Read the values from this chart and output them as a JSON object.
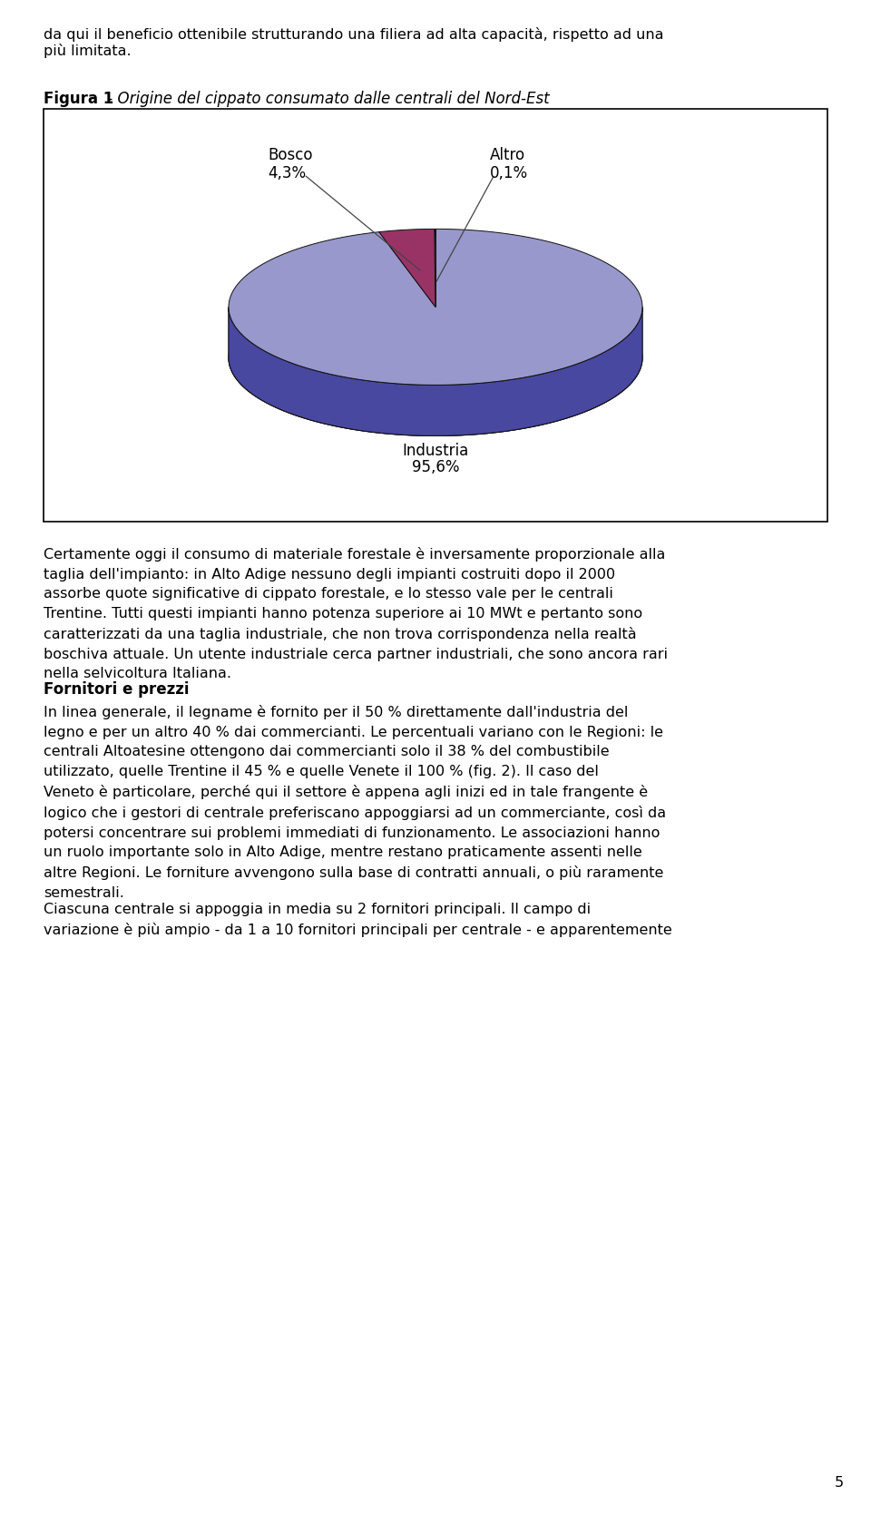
{
  "page_width": 9.6,
  "page_height": 16.7,
  "bg_color": "#ffffff",
  "top_text_line1": "da qui il beneficio ottenibile strutturando una filiera ad alta capacità, rispetto ad una",
  "top_text_line2": "più limitata.",
  "figure_label_bold": "Figura 1",
  "figure_label_italic": " - Origine del cippato consumato dalle centrali del Nord-Est",
  "industria_color_top": "#9898cc",
  "industria_color_side": "#4848a0",
  "bosco_color_top": "#993366",
  "bosco_color_side": "#772255",
  "altro_color_top": "#cc7799",
  "industria_label": "Industria",
  "industria_pct": "95,6%",
  "bosco_label": "Bosco",
  "bosco_pct": "4,3%",
  "altro_label": "Altro",
  "altro_pct": "0,1%",
  "bosco_value": 4.3,
  "altro_value": 0.1,
  "industria_value": 95.6,
  "body_text_1": "Certamente oggi il consumo di materiale forestale è inversamente proporzionale alla\ntaglia dell'impianto: in Alto Adige nessuno degli impianti costruiti dopo il 2000\nassorbe quote significative di cippato forestale, e lo stesso vale per le centrali\nTrentine. Tutti questi impianti hanno potenza superiore ai 10 MWt e pertanto sono\ncaratterizzati da una taglia industriale, che non trova corrispondenza nella realtà\nboschiva attuale. Un utente industriale cerca partner industriali, che sono ancora rari\nnella selvicoltura Italiana.",
  "body_heading": "Fornitori e prezzi",
  "body_text_2": "In linea generale, il legname è fornito per il 50 % direttamente dall'industria del\nlegno e per un altro 40 % dai commercianti. Le percentuali variano con le Regioni: le\ncentrali Altoatesine ottengono dai commercianti solo il 38 % del combustibile\nutilizzato, quelle Trentine il 45 % e quelle Venete il 100 % (fig. 2). Il caso del\nVeneto è particolare, perché qui il settore è appena agli inizi ed in tale frangente è\nlogico che i gestori di centrale preferiscano appoggiarsi ad un commerciante, così da\npotersi concentrare sui problemi immediati di funzionamento. Le associazioni hanno\nun ruolo importante solo in Alto Adige, mentre restano praticamente assenti nelle\naltre Regioni. Le forniture avvengono sulla base di contratti annuali, o più raramente\nsemestrali.",
  "body_text_3": "Ciascuna centrale si appoggia in media su 2 fornitori principali. Il campo di\nvariazione è più ampio - da 1 a 10 fornitori principali per centrale - e apparentemente",
  "page_number": "5",
  "font_size_body": 11.5,
  "font_size_heading": 12,
  "font_size_label": 12
}
